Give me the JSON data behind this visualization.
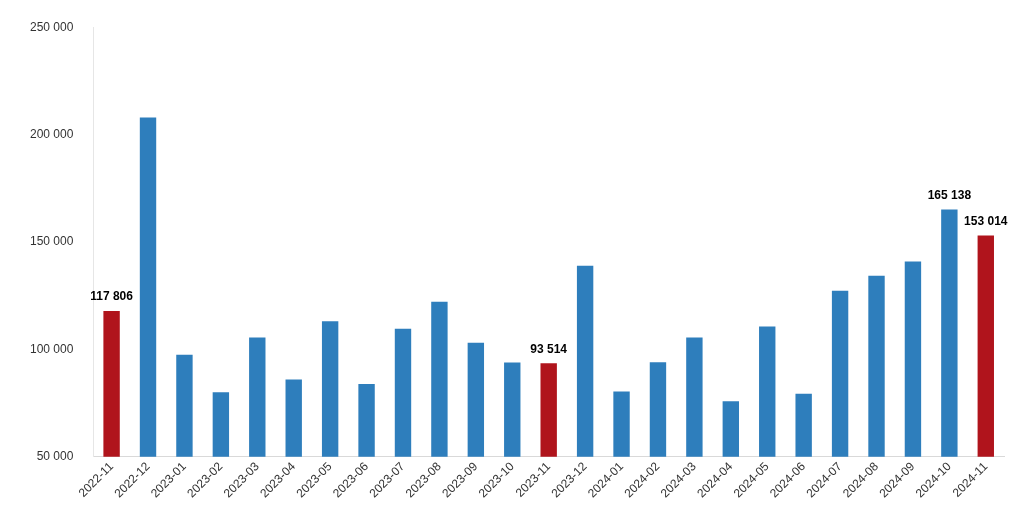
{
  "chart_data": {
    "type": "bar",
    "categories": [
      "2022-11",
      "2022-12",
      "2023-01",
      "2023-02",
      "2023-03",
      "2023-04",
      "2023-05",
      "2023-06",
      "2023-07",
      "2023-08",
      "2023-09",
      "2023-10",
      "2023-11",
      "2023-12",
      "2024-01",
      "2024-02",
      "2024-03",
      "2024-04",
      "2024-05",
      "2024-06",
      "2024-07",
      "2024-08",
      "2024-09",
      "2024-10",
      "2024-11"
    ],
    "values": [
      117806,
      208000,
      97500,
      80000,
      105500,
      85900,
      113100,
      83800,
      109600,
      122200,
      103000,
      93900,
      93514,
      138900,
      80300,
      94000,
      105500,
      75800,
      110600,
      79300,
      127300,
      134300,
      140900,
      165138,
      153014
    ],
    "colors": [
      "#b0141c",
      "#2e7ebc",
      "#2e7ebc",
      "#2e7ebc",
      "#2e7ebc",
      "#2e7ebc",
      "#2e7ebc",
      "#2e7ebc",
      "#2e7ebc",
      "#2e7ebc",
      "#2e7ebc",
      "#2e7ebc",
      "#b0141c",
      "#2e7ebc",
      "#2e7ebc",
      "#2e7ebc",
      "#2e7ebc",
      "#2e7ebc",
      "#2e7ebc",
      "#2e7ebc",
      "#2e7ebc",
      "#2e7ebc",
      "#2e7ebc",
      "#2e7ebc",
      "#b0141c"
    ],
    "value_labels": [
      "117 806",
      null,
      null,
      null,
      null,
      null,
      null,
      null,
      null,
      null,
      null,
      null,
      "93 514",
      null,
      null,
      null,
      null,
      null,
      null,
      null,
      null,
      null,
      null,
      "165 138",
      "153 014"
    ],
    "ylim": [
      50000,
      250000
    ],
    "yticks": [
      {
        "value": 50000,
        "label": "50 000"
      },
      {
        "value": 100000,
        "label": "100 000"
      },
      {
        "value": 150000,
        "label": "150 000"
      },
      {
        "value": 200000,
        "label": "200 000"
      },
      {
        "value": 250000,
        "label": "250 000"
      }
    ],
    "grid": false,
    "legend": false
  }
}
